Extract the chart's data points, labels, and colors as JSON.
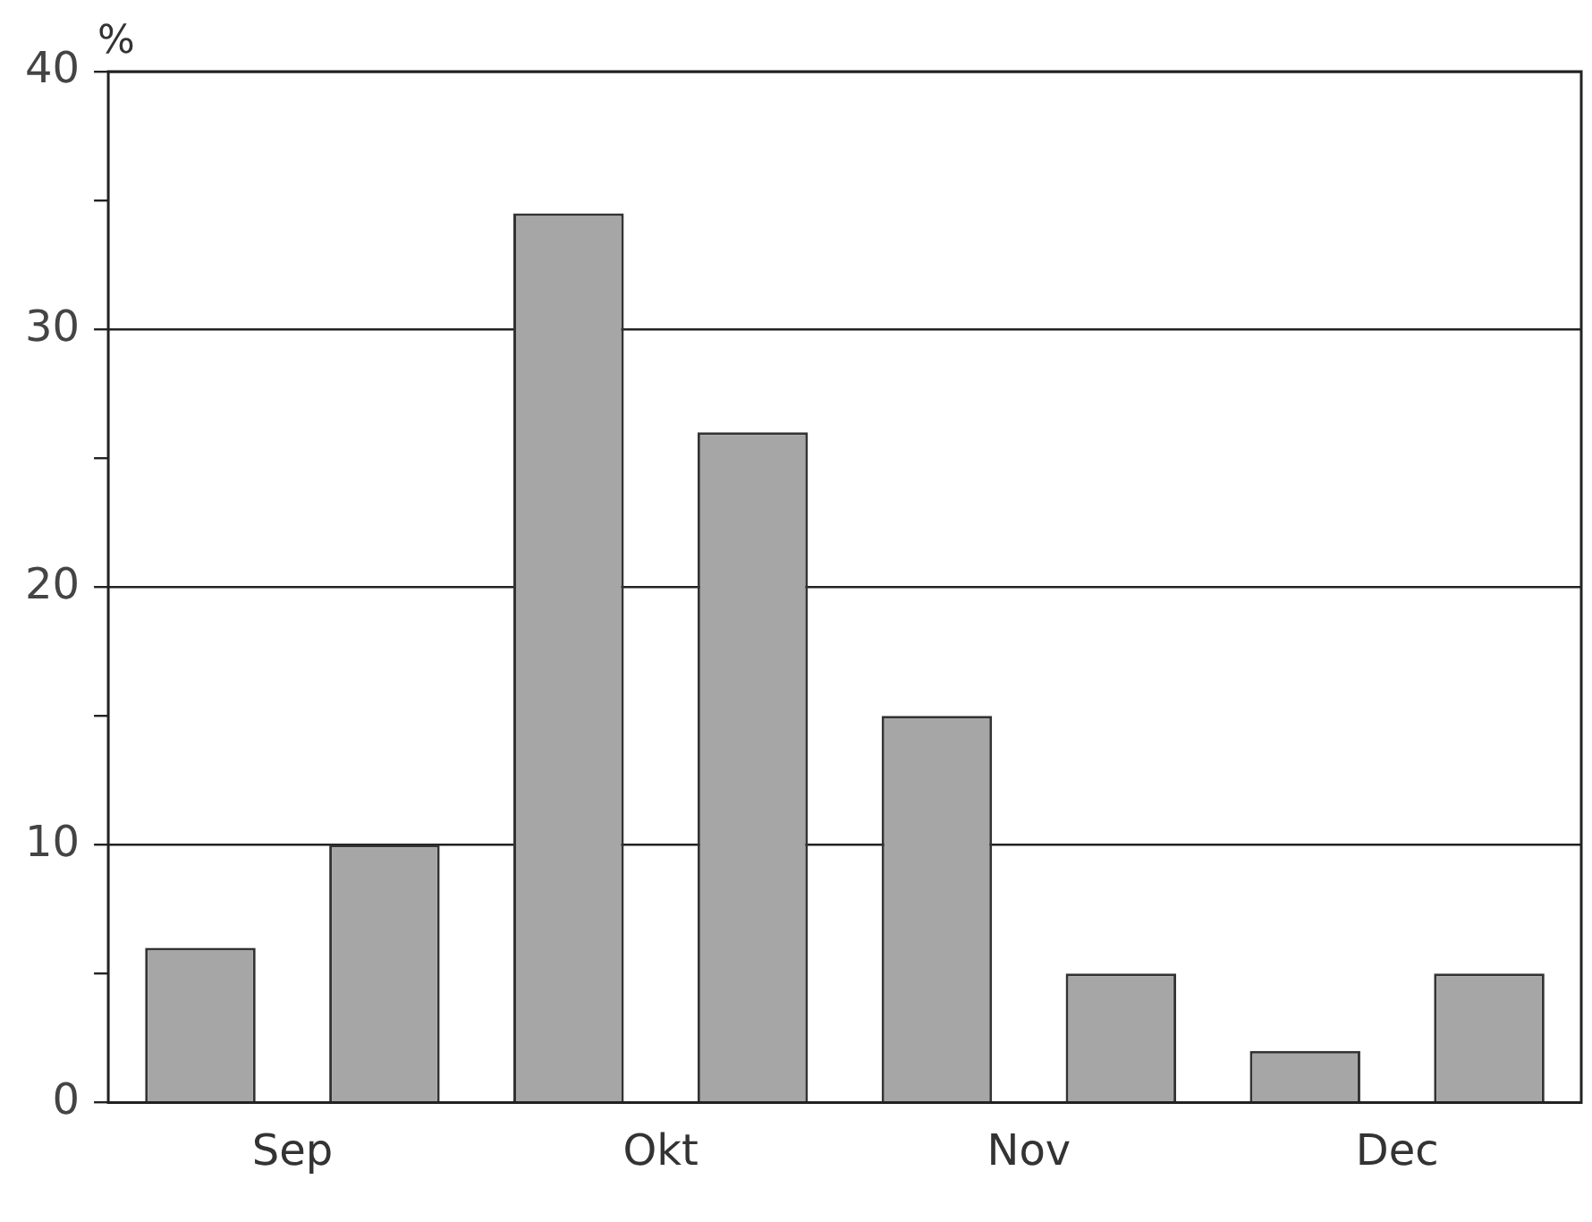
{
  "chart_data": {
    "type": "bar",
    "ylabel": "%",
    "categories": [
      "Sep",
      "Okt",
      "Nov",
      "Dec"
    ],
    "series": [
      {
        "color": "#a6a6a6",
        "values": [
          6,
          34.5,
          15,
          2
        ]
      },
      {
        "color": "#a6a6a6",
        "values": [
          10,
          26,
          5,
          5
        ]
      }
    ],
    "ylim": [
      0,
      40
    ],
    "yticks": [
      0,
      {
        "value": 5,
        "label": null
      },
      10,
      {
        "value": 15,
        "label": null
      },
      20,
      {
        "value": 25,
        "label": null
      },
      30,
      {
        "value": 35,
        "label": null
      },
      40
    ],
    "grid": "y",
    "legend": false
  }
}
